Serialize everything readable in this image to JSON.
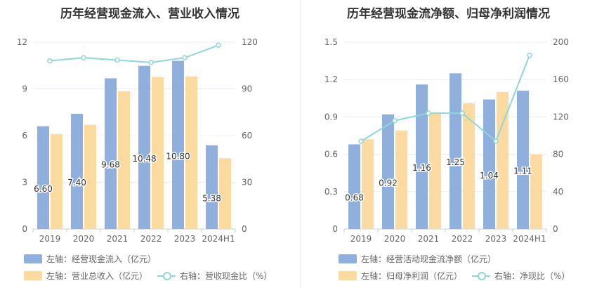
{
  "chart_data": [
    {
      "type": "bar",
      "title": "历年经营现金流入、营业收入情况",
      "categories": [
        "2019",
        "2020",
        "2021",
        "2022",
        "2023",
        "2024H1"
      ],
      "series": [
        {
          "name": "左轴：经营现金流入（亿元）",
          "axis": "left",
          "type": "bar",
          "color": "#8fafdd",
          "values": [
            6.6,
            7.4,
            9.68,
            10.48,
            10.8,
            5.38
          ],
          "labels": [
            "6.60",
            "7.40",
            "9.68",
            "10.48",
            "10.80",
            "5.38"
          ]
        },
        {
          "name": "左轴：营业总收入（亿元）",
          "axis": "left",
          "type": "bar",
          "color": "#fddba0",
          "values": [
            6.1,
            6.7,
            8.85,
            9.75,
            9.8,
            4.55
          ]
        },
        {
          "name": "右轴：营收现金比（%）",
          "axis": "right",
          "type": "line",
          "color": "#8fd6db",
          "values": [
            108,
            110,
            108.5,
            107,
            110,
            118
          ]
        }
      ],
      "left_axis": {
        "min": 0,
        "max": 12,
        "ticks": [
          "0",
          "3",
          "6",
          "9",
          "12"
        ]
      },
      "right_axis": {
        "min": 0,
        "max": 120,
        "ticks": [
          "0",
          "30",
          "60",
          "90",
          "120"
        ]
      },
      "grid": true
    },
    {
      "type": "bar",
      "title": "历年经营现金流净额、归母净利润情况",
      "categories": [
        "2019",
        "2020",
        "2021",
        "2022",
        "2023",
        "2024H1"
      ],
      "series": [
        {
          "name": "左轴：经营活动现金流净额（亿元）",
          "axis": "left",
          "type": "bar",
          "color": "#8fafdd",
          "values": [
            0.68,
            0.92,
            1.16,
            1.25,
            1.04,
            1.11
          ],
          "labels": [
            "0.68",
            "0.92",
            "1.16",
            "1.25",
            "1.04",
            "1.11"
          ]
        },
        {
          "name": "左轴：归母净利润（亿元）",
          "axis": "left",
          "type": "bar",
          "color": "#fddba0",
          "values": [
            0.72,
            0.79,
            0.93,
            1.01,
            1.1,
            0.6
          ]
        },
        {
          "name": "右轴：净现比（%）",
          "axis": "right",
          "type": "line",
          "color": "#8fd6db",
          "values": [
            94,
            116,
            124,
            124,
            94,
            186
          ]
        }
      ],
      "left_axis": {
        "min": 0,
        "max": 1.5,
        "ticks": [
          "0",
          "0.3",
          "0.6",
          "0.9",
          "1.2",
          "1.5"
        ]
      },
      "right_axis": {
        "min": 0,
        "max": 200,
        "ticks": [
          "0",
          "40",
          "80",
          "120",
          "160",
          "200"
        ]
      },
      "grid": true
    }
  ]
}
